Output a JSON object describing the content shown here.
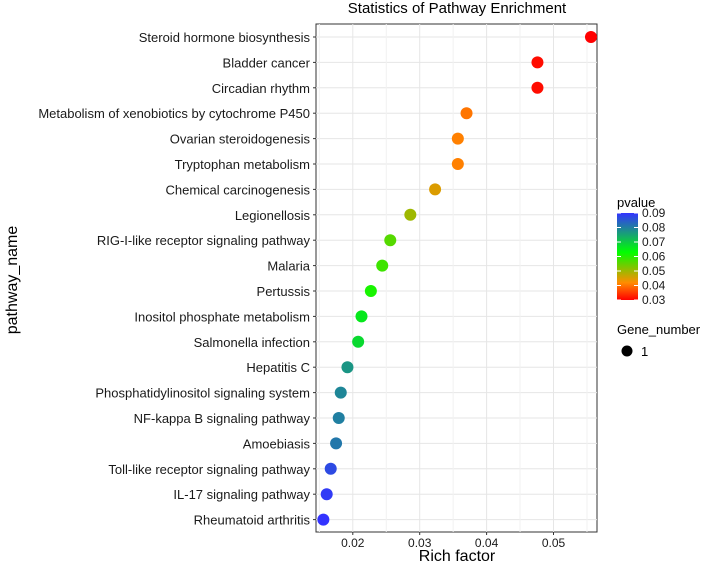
{
  "chart_data": {
    "type": "scatter",
    "title": "Statistics of Pathway Enrichment",
    "xlabel": "Rich factor",
    "ylabel": "pathway_name",
    "xlim": [
      0.0145,
      0.0565
    ],
    "xticks": [
      0.02,
      0.03,
      0.04,
      0.05
    ],
    "xtick_labels": [
      "0.02",
      "0.03",
      "0.04",
      "0.05"
    ],
    "grid": true,
    "legend_position": "right",
    "points": [
      {
        "pathway": "Steroid hormone biosynthesis",
        "rich_factor": 0.0556,
        "pvalue": 0.03,
        "gene_number": 1
      },
      {
        "pathway": "Bladder cancer",
        "rich_factor": 0.0476,
        "pvalue": 0.031,
        "gene_number": 1
      },
      {
        "pathway": "Circadian rhythm",
        "rich_factor": 0.0476,
        "pvalue": 0.031,
        "gene_number": 1
      },
      {
        "pathway": "Metabolism of xenobiotics by cytochrome P450",
        "rich_factor": 0.037,
        "pvalue": 0.04,
        "gene_number": 1
      },
      {
        "pathway": "Ovarian steroidogenesis",
        "rich_factor": 0.0357,
        "pvalue": 0.041,
        "gene_number": 1
      },
      {
        "pathway": "Tryptophan metabolism",
        "rich_factor": 0.0357,
        "pvalue": 0.041,
        "gene_number": 1
      },
      {
        "pathway": "Chemical carcinogenesis",
        "rich_factor": 0.0323,
        "pvalue": 0.045,
        "gene_number": 1
      },
      {
        "pathway": "Legionellosis",
        "rich_factor": 0.0286,
        "pvalue": 0.05,
        "gene_number": 1
      },
      {
        "pathway": "RIG-I-like receptor signaling pathway",
        "rich_factor": 0.0256,
        "pvalue": 0.056,
        "gene_number": 1
      },
      {
        "pathway": "Malaria",
        "rich_factor": 0.0244,
        "pvalue": 0.058,
        "gene_number": 1
      },
      {
        "pathway": "Pertussis",
        "rich_factor": 0.0227,
        "pvalue": 0.061,
        "gene_number": 1
      },
      {
        "pathway": "Inositol phosphate metabolism",
        "rich_factor": 0.0213,
        "pvalue": 0.066,
        "gene_number": 1
      },
      {
        "pathway": "Salmonella infection",
        "rich_factor": 0.0208,
        "pvalue": 0.068,
        "gene_number": 1
      },
      {
        "pathway": "Hepatitis C",
        "rich_factor": 0.0192,
        "pvalue": 0.077,
        "gene_number": 1
      },
      {
        "pathway": "Phosphatidylinositol signaling system",
        "rich_factor": 0.0182,
        "pvalue": 0.079,
        "gene_number": 1
      },
      {
        "pathway": "NF-kappa B signaling pathway",
        "rich_factor": 0.0179,
        "pvalue": 0.08,
        "gene_number": 1
      },
      {
        "pathway": "Amoebiasis",
        "rich_factor": 0.0175,
        "pvalue": 0.081,
        "gene_number": 1
      },
      {
        "pathway": "Toll-like receptor signaling pathway",
        "rich_factor": 0.0167,
        "pvalue": 0.087,
        "gene_number": 1
      },
      {
        "pathway": "IL-17 signaling pathway",
        "rich_factor": 0.0161,
        "pvalue": 0.089,
        "gene_number": 1
      },
      {
        "pathway": "Rheumatoid arthritis",
        "rich_factor": 0.0156,
        "pvalue": 0.09,
        "gene_number": 1
      }
    ],
    "color_legend": {
      "title": "pvalue",
      "min": 0.03,
      "max": 0.09,
      "ticks": [
        "0.09",
        "0.08",
        "0.07",
        "0.06",
        "0.05",
        "0.04",
        "0.03"
      ],
      "colors": [
        "#ff0000",
        "#ff8c00",
        "#00ff00",
        "#3333ff"
      ]
    },
    "size_legend": {
      "title": "Gene_number",
      "entries": [
        "1"
      ]
    }
  }
}
